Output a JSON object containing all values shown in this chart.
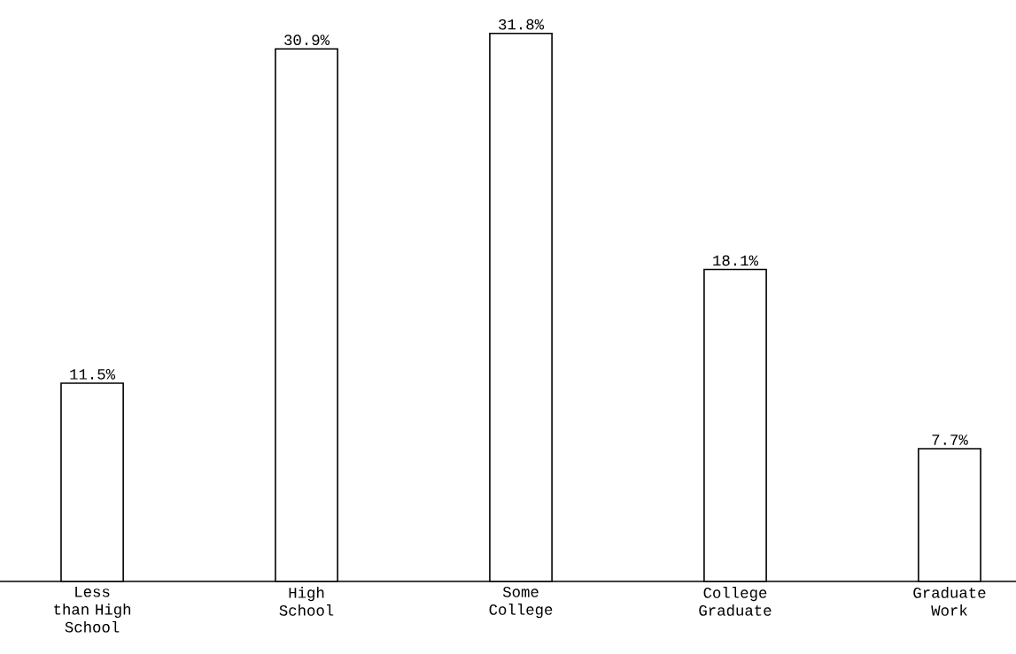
{
  "chart_data": {
    "type": "bar",
    "categories": [
      "Less than High School",
      "High School",
      "Some College",
      "College Graduate",
      "Graduate Work"
    ],
    "values": [
      11.5,
      30.9,
      31.8,
      18.1,
      7.7
    ],
    "value_labels": [
      "11.5%",
      "30.9%",
      "31.8%",
      "18.1%",
      "7.7%"
    ],
    "color": "#ffffff"
  }
}
